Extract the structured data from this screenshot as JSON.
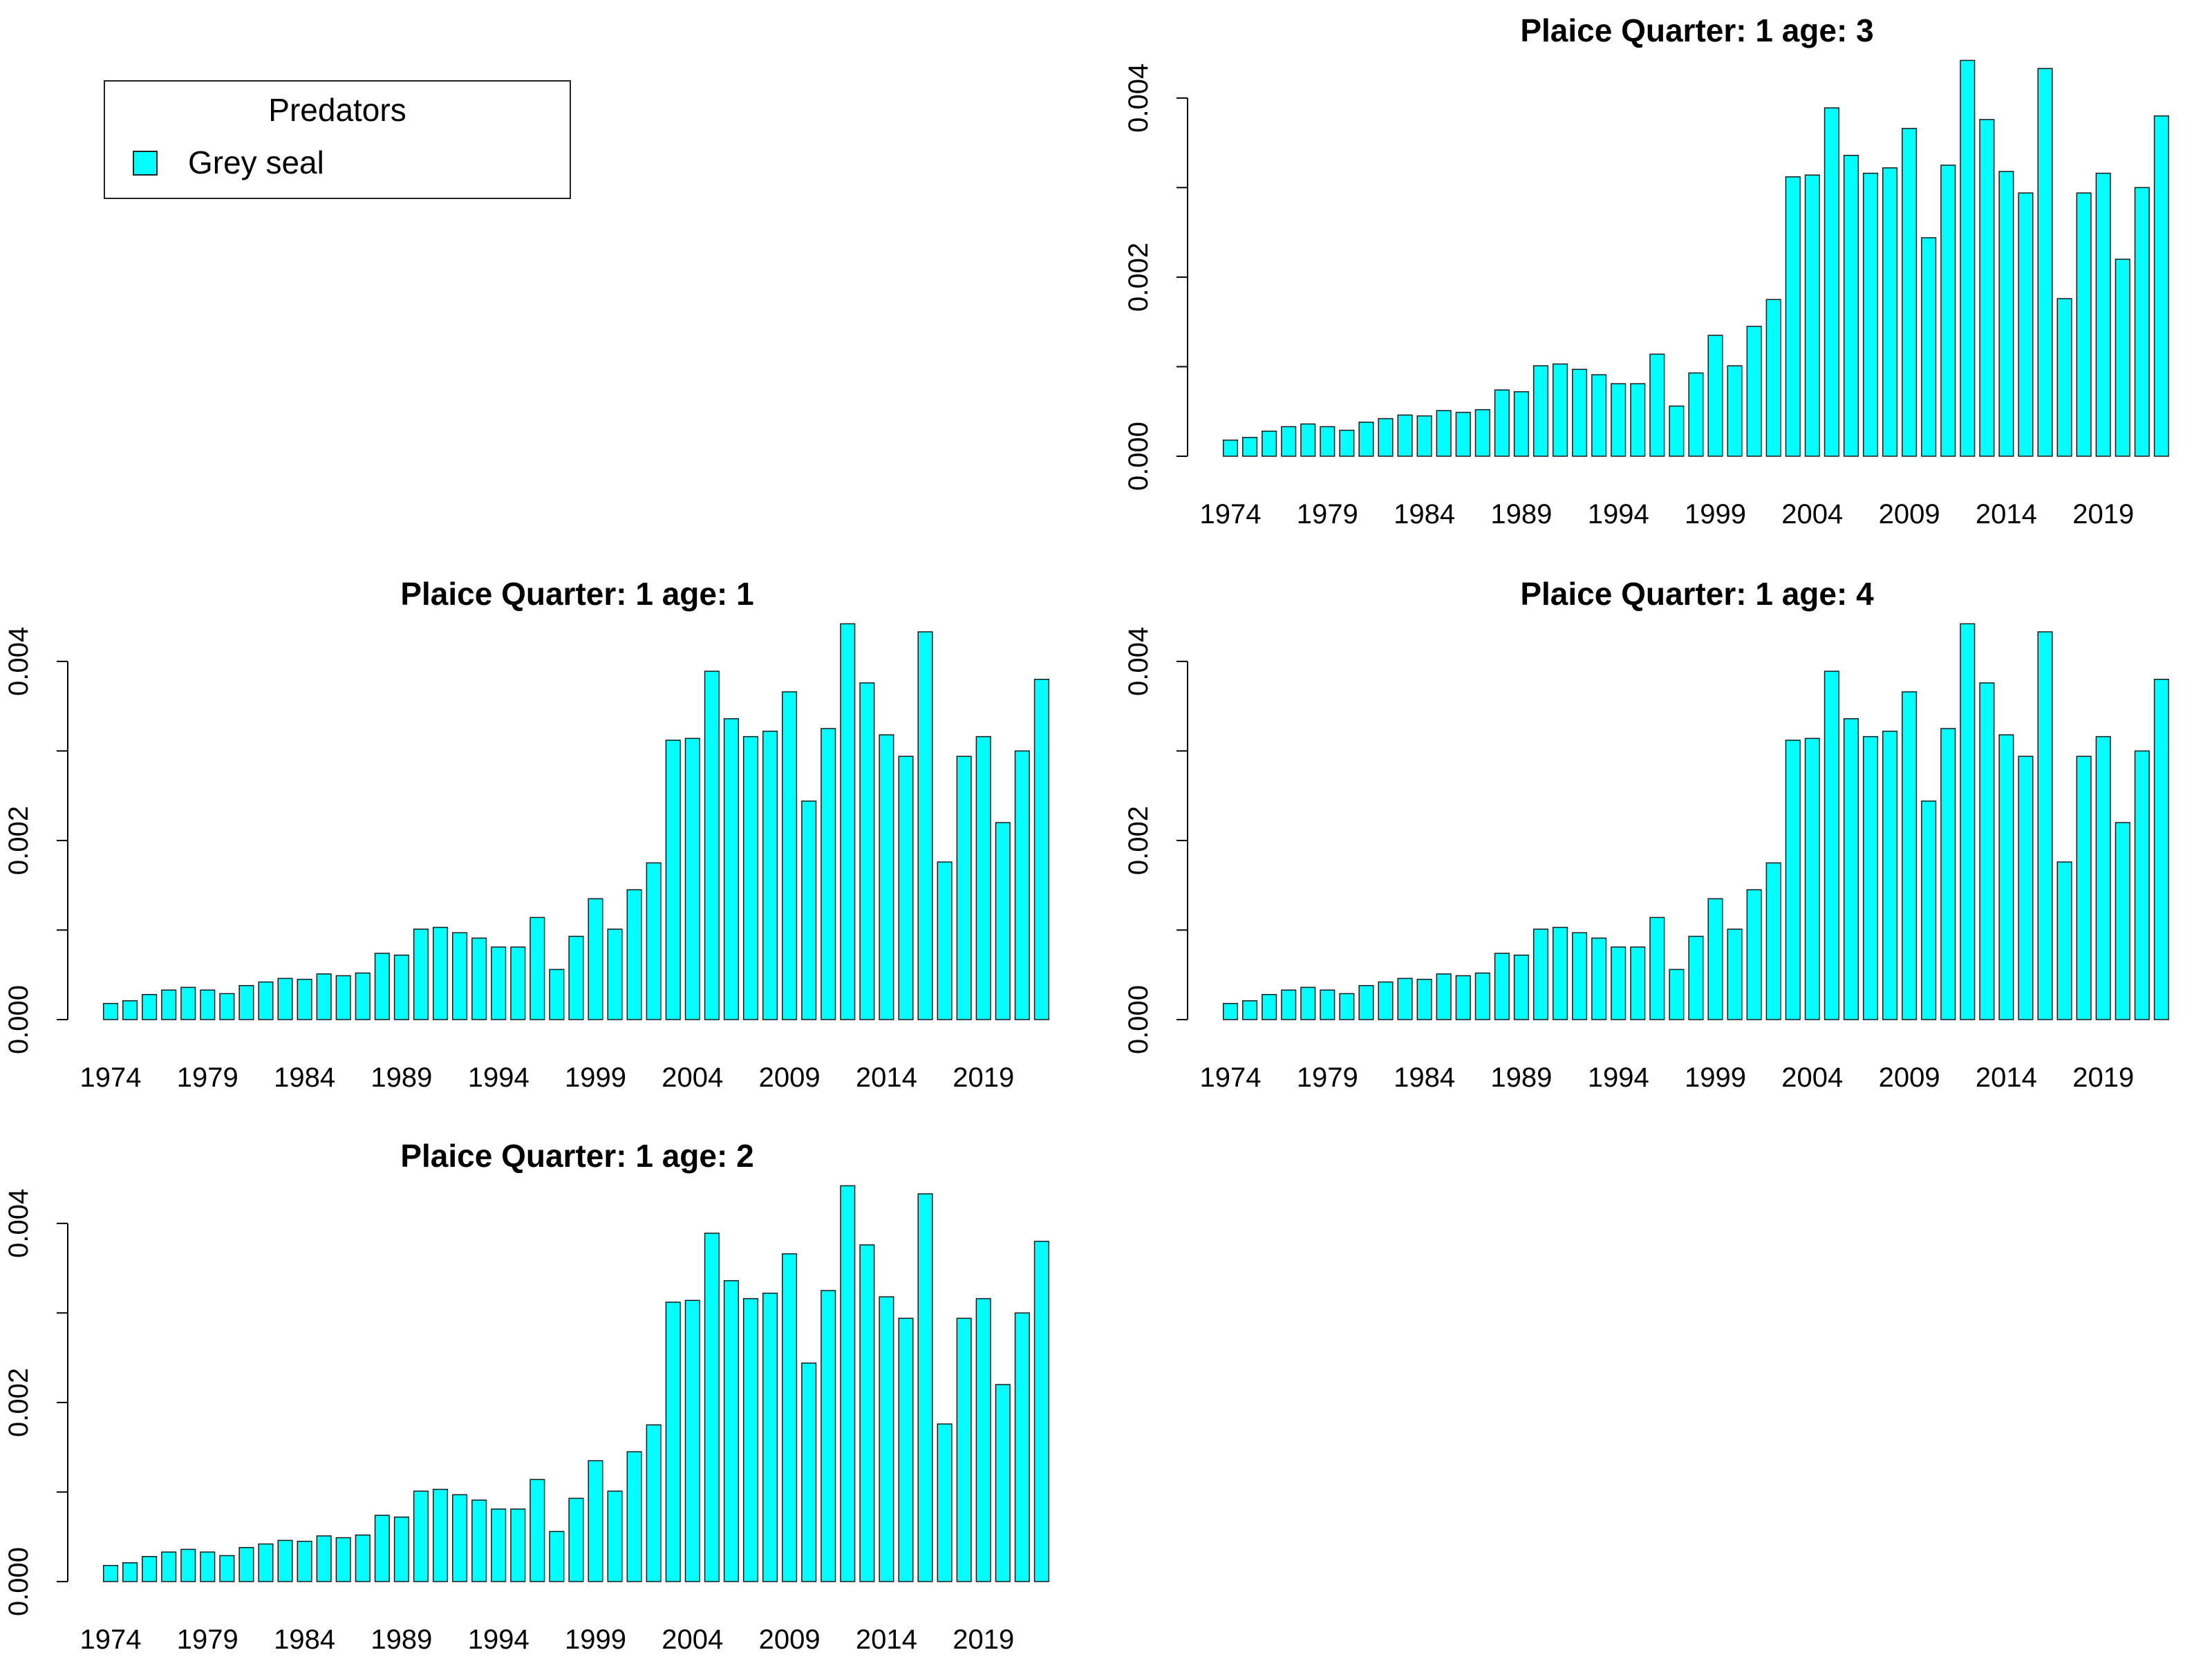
{
  "legend": {
    "title": "Predators",
    "items": [
      {
        "label": "Grey seal",
        "color": "#00FFFF"
      }
    ]
  },
  "chart_data": [
    {
      "type": "bar",
      "title": "Plaice  Quarter: 1  age: 3",
      "xlabel": "",
      "ylabel": "",
      "ylim": [
        0,
        0.0044
      ],
      "yticks": [
        "0.000",
        "0.002",
        "0.004"
      ],
      "xtick_labels": [
        "1974",
        "1979",
        "1984",
        "1989",
        "1994",
        "1999",
        "2004",
        "2009",
        "2014",
        "2019"
      ],
      "categories": [
        1974,
        1975,
        1976,
        1977,
        1978,
        1979,
        1980,
        1981,
        1982,
        1983,
        1984,
        1985,
        1986,
        1987,
        1988,
        1989,
        1990,
        1991,
        1992,
        1993,
        1994,
        1995,
        1996,
        1997,
        1998,
        1999,
        2000,
        2001,
        2002,
        2003,
        2004,
        2005,
        2006,
        2007,
        2008,
        2009,
        2010,
        2011,
        2012,
        2013,
        2014,
        2015,
        2016,
        2017,
        2018,
        2019,
        2020,
        2021,
        2022
      ],
      "series": [
        {
          "name": "Grey seal",
          "color": "#00FFFF",
          "values": [
            0.00018,
            0.00021,
            0.00028,
            0.00033,
            0.00036,
            0.00033,
            0.00029,
            0.00038,
            0.00042,
            0.00046,
            0.00045,
            0.00051,
            0.00049,
            0.00052,
            0.00074,
            0.00072,
            0.00101,
            0.00103,
            0.00097,
            0.00091,
            0.00081,
            0.00081,
            0.00114,
            0.00056,
            0.00093,
            0.00135,
            0.00101,
            0.00145,
            0.00175,
            0.00312,
            0.00314,
            0.00389,
            0.00336,
            0.00316,
            0.00322,
            0.00366,
            0.00244,
            0.00325,
            0.00442,
            0.00376,
            0.00318,
            0.00294,
            0.00433,
            0.00176,
            0.00294,
            0.00316,
            0.0022,
            0.003,
            0.0038
          ]
        }
      ]
    },
    {
      "type": "bar",
      "title": "Plaice  Quarter: 1  age: 1",
      "xlabel": "",
      "ylabel": "",
      "ylim": [
        0,
        0.0044
      ],
      "yticks": [
        "0.000",
        "0.002",
        "0.004"
      ],
      "xtick_labels": [
        "1974",
        "1979",
        "1984",
        "1989",
        "1994",
        "1999",
        "2004",
        "2009",
        "2014",
        "2019"
      ],
      "categories": [
        1974,
        1975,
        1976,
        1977,
        1978,
        1979,
        1980,
        1981,
        1982,
        1983,
        1984,
        1985,
        1986,
        1987,
        1988,
        1989,
        1990,
        1991,
        1992,
        1993,
        1994,
        1995,
        1996,
        1997,
        1998,
        1999,
        2000,
        2001,
        2002,
        2003,
        2004,
        2005,
        2006,
        2007,
        2008,
        2009,
        2010,
        2011,
        2012,
        2013,
        2014,
        2015,
        2016,
        2017,
        2018,
        2019,
        2020,
        2021,
        2022
      ],
      "series": [
        {
          "name": "Grey seal",
          "color": "#00FFFF",
          "values": [
            0.00018,
            0.00021,
            0.00028,
            0.00033,
            0.00036,
            0.00033,
            0.00029,
            0.00038,
            0.00042,
            0.00046,
            0.00045,
            0.00051,
            0.00049,
            0.00052,
            0.00074,
            0.00072,
            0.00101,
            0.00103,
            0.00097,
            0.00091,
            0.00081,
            0.00081,
            0.00114,
            0.00056,
            0.00093,
            0.00135,
            0.00101,
            0.00145,
            0.00175,
            0.00312,
            0.00314,
            0.00389,
            0.00336,
            0.00316,
            0.00322,
            0.00366,
            0.00244,
            0.00325,
            0.00442,
            0.00376,
            0.00318,
            0.00294,
            0.00433,
            0.00176,
            0.00294,
            0.00316,
            0.0022,
            0.003,
            0.0038
          ]
        }
      ]
    },
    {
      "type": "bar",
      "title": "Plaice  Quarter: 1  age: 4",
      "xlabel": "",
      "ylabel": "",
      "ylim": [
        0,
        0.0044
      ],
      "yticks": [
        "0.000",
        "0.002",
        "0.004"
      ],
      "xtick_labels": [
        "1974",
        "1979",
        "1984",
        "1989",
        "1994",
        "1999",
        "2004",
        "2009",
        "2014",
        "2019"
      ],
      "categories": [
        1974,
        1975,
        1976,
        1977,
        1978,
        1979,
        1980,
        1981,
        1982,
        1983,
        1984,
        1985,
        1986,
        1987,
        1988,
        1989,
        1990,
        1991,
        1992,
        1993,
        1994,
        1995,
        1996,
        1997,
        1998,
        1999,
        2000,
        2001,
        2002,
        2003,
        2004,
        2005,
        2006,
        2007,
        2008,
        2009,
        2010,
        2011,
        2012,
        2013,
        2014,
        2015,
        2016,
        2017,
        2018,
        2019,
        2020,
        2021,
        2022
      ],
      "series": [
        {
          "name": "Grey seal",
          "color": "#00FFFF",
          "values": [
            0.00018,
            0.00021,
            0.00028,
            0.00033,
            0.00036,
            0.00033,
            0.00029,
            0.00038,
            0.00042,
            0.00046,
            0.00045,
            0.00051,
            0.00049,
            0.00052,
            0.00074,
            0.00072,
            0.00101,
            0.00103,
            0.00097,
            0.00091,
            0.00081,
            0.00081,
            0.00114,
            0.00056,
            0.00093,
            0.00135,
            0.00101,
            0.00145,
            0.00175,
            0.00312,
            0.00314,
            0.00389,
            0.00336,
            0.00316,
            0.00322,
            0.00366,
            0.00244,
            0.00325,
            0.00442,
            0.00376,
            0.00318,
            0.00294,
            0.00433,
            0.00176,
            0.00294,
            0.00316,
            0.0022,
            0.003,
            0.0038
          ]
        }
      ]
    },
    {
      "type": "bar",
      "title": "Plaice  Quarter: 1  age: 2",
      "xlabel": "",
      "ylabel": "",
      "ylim": [
        0,
        0.0044
      ],
      "yticks": [
        "0.000",
        "0.002",
        "0.004"
      ],
      "xtick_labels": [
        "1974",
        "1979",
        "1984",
        "1989",
        "1994",
        "1999",
        "2004",
        "2009",
        "2014",
        "2019"
      ],
      "categories": [
        1974,
        1975,
        1976,
        1977,
        1978,
        1979,
        1980,
        1981,
        1982,
        1983,
        1984,
        1985,
        1986,
        1987,
        1988,
        1989,
        1990,
        1991,
        1992,
        1993,
        1994,
        1995,
        1996,
        1997,
        1998,
        1999,
        2000,
        2001,
        2002,
        2003,
        2004,
        2005,
        2006,
        2007,
        2008,
        2009,
        2010,
        2011,
        2012,
        2013,
        2014,
        2015,
        2016,
        2017,
        2018,
        2019,
        2020,
        2021,
        2022
      ],
      "series": [
        {
          "name": "Grey seal",
          "color": "#00FFFF",
          "values": [
            0.00018,
            0.00021,
            0.00028,
            0.00033,
            0.00036,
            0.00033,
            0.00029,
            0.00038,
            0.00042,
            0.00046,
            0.00045,
            0.00051,
            0.00049,
            0.00052,
            0.00074,
            0.00072,
            0.00101,
            0.00103,
            0.00097,
            0.00091,
            0.00081,
            0.00081,
            0.00114,
            0.00056,
            0.00093,
            0.00135,
            0.00101,
            0.00145,
            0.00175,
            0.00312,
            0.00314,
            0.00389,
            0.00336,
            0.00316,
            0.00322,
            0.00366,
            0.00244,
            0.00325,
            0.00442,
            0.00376,
            0.00318,
            0.00294,
            0.00433,
            0.00176,
            0.00294,
            0.00316,
            0.0022,
            0.003,
            0.0038
          ]
        }
      ]
    }
  ]
}
